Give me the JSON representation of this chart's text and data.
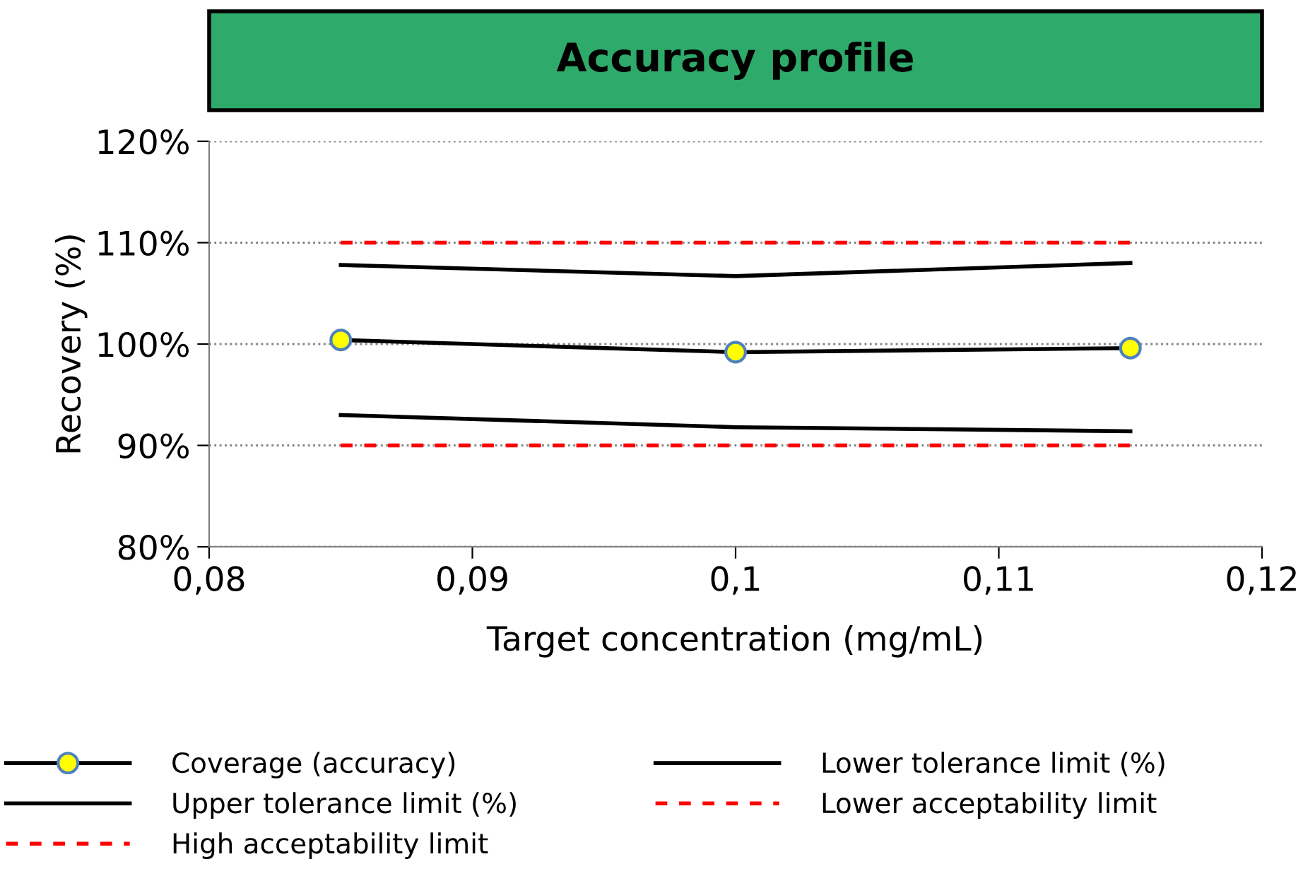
{
  "chart_data": {
    "type": "line",
    "title": "Accuracy profile",
    "xlabel": "Target concentration (mg/mL)",
    "ylabel": "Recovery (%)",
    "x": [
      0.085,
      0.1,
      0.115
    ],
    "series": [
      {
        "name": "Coverage (accuracy)",
        "color": "#000000",
        "marker": "circle",
        "values": [
          100.4,
          99.2,
          99.6
        ]
      },
      {
        "name": "Lower tolerance limit (%)",
        "color": "#000000",
        "marker": "none",
        "values": [
          93.0,
          91.8,
          91.4
        ]
      },
      {
        "name": "Upper tolerance limit (%)",
        "color": "#000000",
        "marker": "none",
        "values": [
          107.8,
          106.7,
          108.0
        ]
      },
      {
        "name": "Lower acceptability limit",
        "color": "#ff0000",
        "marker": "none",
        "line_style": "dashed",
        "values": [
          90,
          90,
          90
        ]
      },
      {
        "name": "High acceptability limit",
        "color": "#ff0000",
        "marker": "none",
        "line_style": "dashed",
        "values": [
          110,
          110,
          110
        ]
      }
    ],
    "xlim": [
      0.08,
      0.12
    ],
    "xticks": [
      {
        "value": 0.08,
        "label": "0,08"
      },
      {
        "value": 0.09,
        "label": "0,09"
      },
      {
        "value": 0.1,
        "label": "0,1"
      },
      {
        "value": 0.11,
        "label": "0,11"
      },
      {
        "value": 0.12,
        "label": "0,12"
      }
    ],
    "ylim": [
      80,
      120
    ],
    "yticks": [
      {
        "value": 80,
        "label": "80%"
      },
      {
        "value": 90,
        "label": "90%"
      },
      {
        "value": 100,
        "label": "100%"
      },
      {
        "value": 110,
        "label": "110%"
      },
      {
        "value": 120,
        "label": "120%"
      }
    ],
    "grid": "y",
    "legend": "bottom"
  }
}
